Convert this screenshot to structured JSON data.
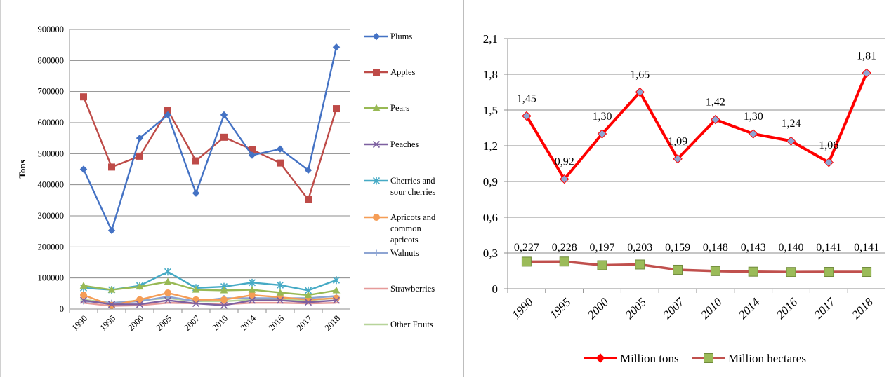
{
  "chart_data": [
    {
      "type": "line",
      "ylabel": "Tons",
      "ylim": [
        0,
        900000
      ],
      "yticks": [
        "0",
        "100000",
        "200000",
        "300000",
        "400000",
        "500000",
        "600000",
        "700000",
        "800000",
        "900000"
      ],
      "grid": true,
      "legend_position": "right",
      "categories": [
        "1990",
        "1995",
        "2000",
        "2005",
        "2007",
        "2010",
        "2014",
        "2016",
        "2017",
        "2018"
      ],
      "series": [
        {
          "name": "Plums",
          "color": "#4472c4",
          "marker": "diamond",
          "values": [
            450000,
            253000,
            550000,
            625000,
            373000,
            625000,
            495000,
            515000,
            447000,
            843000
          ]
        },
        {
          "name": "Apples",
          "color": "#be4b48",
          "marker": "square",
          "values": [
            683000,
            457000,
            492000,
            640000,
            477000,
            553000,
            513000,
            470000,
            352000,
            645000
          ]
        },
        {
          "name": "Pears",
          "color": "#98b954",
          "marker": "triangle",
          "values": [
            75000,
            62000,
            72000,
            88000,
            62000,
            60000,
            62000,
            53000,
            45000,
            60000
          ]
        },
        {
          "name": "Peaches",
          "color": "#7d60a0",
          "marker": "x",
          "values": [
            28000,
            15000,
            15000,
            28000,
            18000,
            12000,
            28000,
            28000,
            22000,
            28000
          ]
        },
        {
          "name": "Cherries and sour cherries",
          "color": "#46aac5",
          "marker": "star",
          "values": [
            68000,
            62000,
            75000,
            120000,
            68000,
            72000,
            85000,
            77000,
            60000,
            93000
          ]
        },
        {
          "name": "Apricots and common apricots",
          "color": "#f59d56",
          "marker": "circle",
          "values": [
            45000,
            12000,
            30000,
            52000,
            30000,
            30000,
            45000,
            38000,
            30000,
            35000
          ]
        },
        {
          "name": "Walnuts",
          "color": "#8ea5d3",
          "marker": "plus",
          "values": [
            25000,
            20000,
            25000,
            40000,
            25000,
            35000,
            35000,
            35000,
            35000,
            42000
          ]
        },
        {
          "name": "Strawberries",
          "color": "#e69a99",
          "marker": "dash",
          "values": [
            20000,
            10000,
            12000,
            20000,
            18000,
            15000,
            20000,
            20000,
            18000,
            20000
          ]
        },
        {
          "name": "Other Fruits",
          "color": "#b7d49a",
          "marker": "dash",
          "values": [
            30000,
            20000,
            28000,
            35000,
            25000,
            25000,
            30000,
            30000,
            28000,
            35000
          ]
        }
      ]
    },
    {
      "type": "line",
      "ylim": [
        0,
        2.1
      ],
      "yticks": [
        "0",
        "0,3",
        "0,6",
        "0,9",
        "1,2",
        "1,5",
        "1,8",
        "2,1"
      ],
      "grid": true,
      "legend_position": "bottom",
      "categories": [
        "1990",
        "1995",
        "2000",
        "2005",
        "2007",
        "2010",
        "2014",
        "2016",
        "2017",
        "2018"
      ],
      "series": [
        {
          "name": "Million tons",
          "color": "#ff0000",
          "marker": "diamond",
          "values": [
            1.45,
            0.92,
            1.3,
            1.65,
            1.09,
            1.42,
            1.3,
            1.24,
            1.06,
            1.81
          ],
          "labels": [
            "1,45",
            "0,92",
            "1,30",
            "1,65",
            "1,09",
            "1,42",
            "1,30",
            "1,24",
            "1,06",
            "1,81"
          ]
        },
        {
          "name": "Million hectares",
          "color": "#c0504d",
          "marker_fill": "#9bbb59",
          "marker": "square",
          "values": [
            0.227,
            0.228,
            0.197,
            0.203,
            0.159,
            0.148,
            0.143,
            0.14,
            0.141,
            0.141
          ],
          "labels": [
            "0,227",
            "0,228",
            "0,197",
            "0,203",
            "0,159",
            "0,148",
            "0,143",
            "0,140",
            "0,141",
            "0,141"
          ]
        }
      ]
    }
  ]
}
